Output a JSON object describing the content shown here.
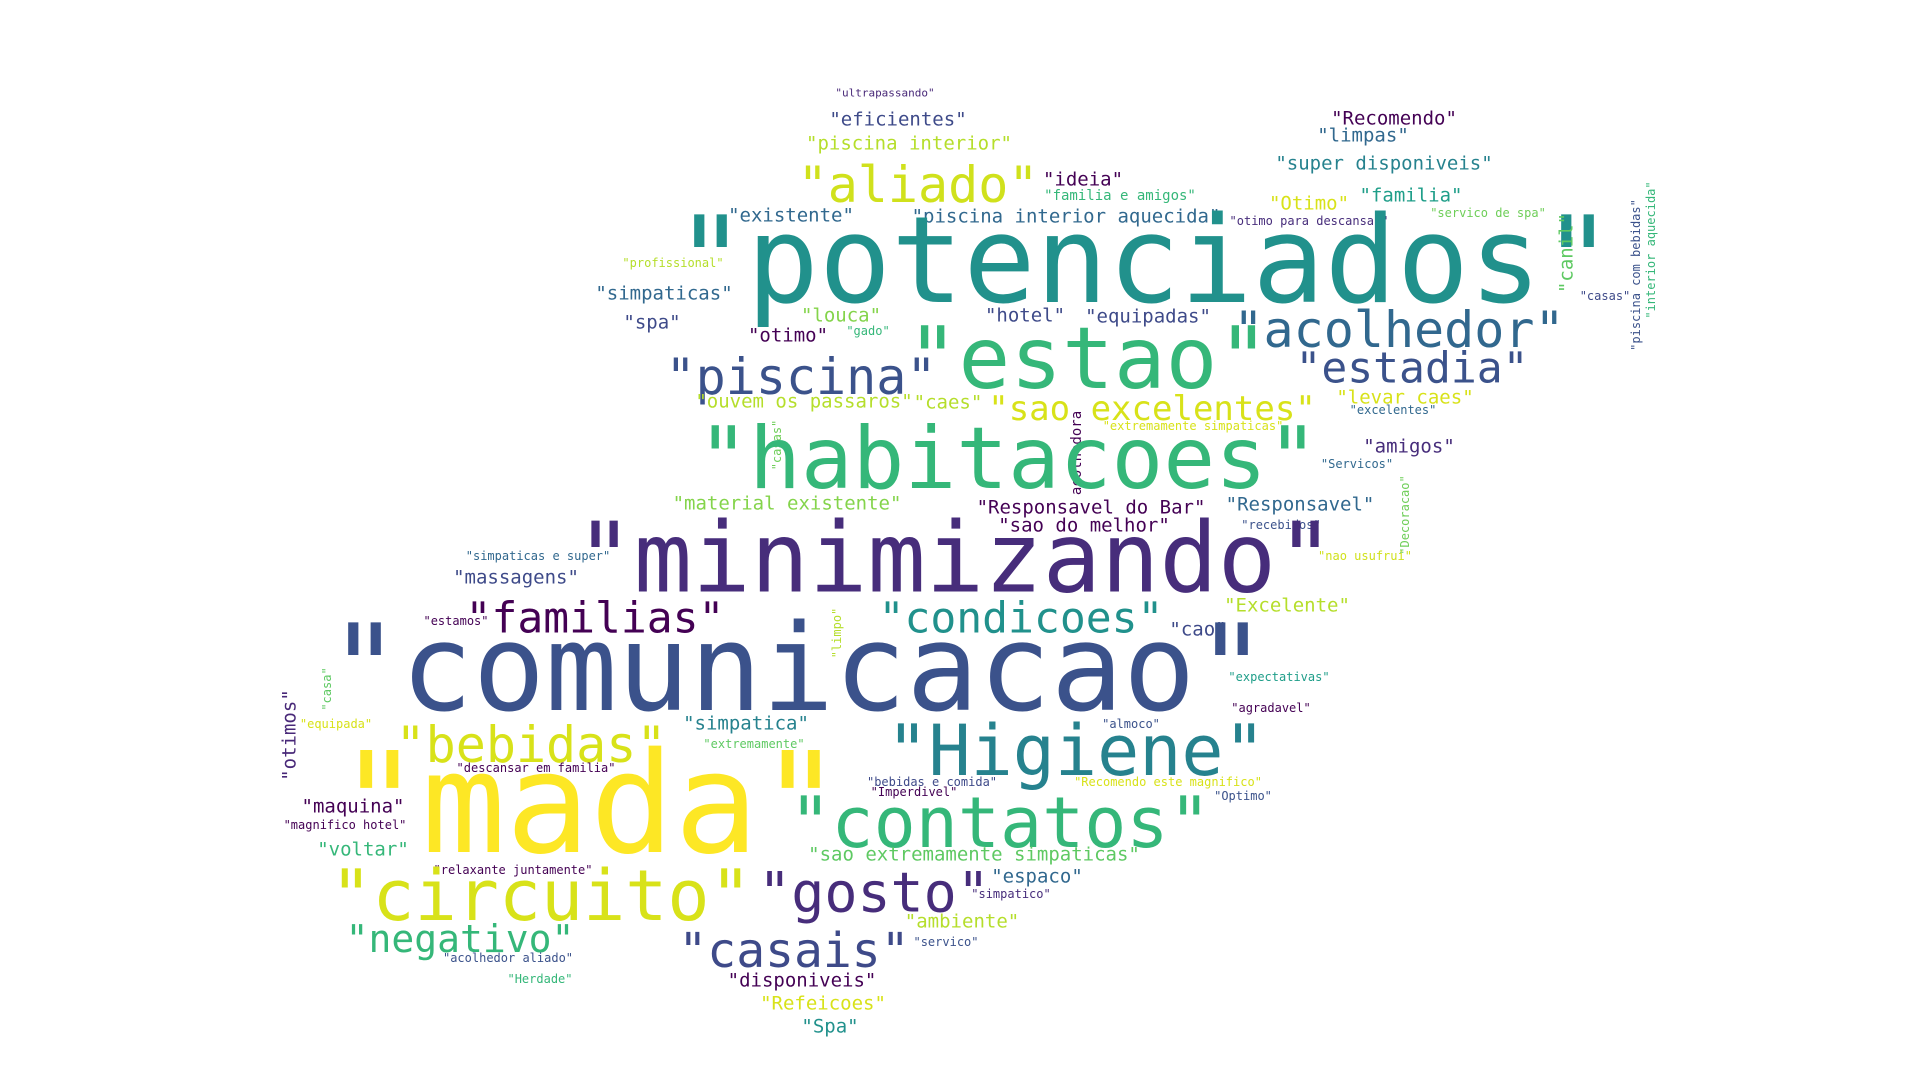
{
  "words": [
    {
      "text": "\"ultrapassando\"",
      "color": "#482878"
    },
    {
      "text": "\"eficientes\"",
      "color": "#3e4a89"
    },
    {
      "text": "\"Recomendo\"",
      "color": "#440154"
    },
    {
      "text": "\"piscina interior\"",
      "color": "#b5de2b"
    },
    {
      "text": "\"limpas\"",
      "color": "#31688e"
    },
    {
      "text": "\"super disponiveis\"",
      "color": "#26828e"
    },
    {
      "text": "\"aliado\"",
      "color": "#d0e11c"
    },
    {
      "text": "\"ideia\"",
      "color": "#440154"
    },
    {
      "text": "\"familia e amigos\"",
      "color": "#35b779"
    },
    {
      "text": "\"Otimo\"",
      "color": "#d8e219"
    },
    {
      "text": "\"familia\"",
      "color": "#1f9e89"
    },
    {
      "text": "\"existente\"",
      "color": "#31688e"
    },
    {
      "text": "\"piscina interior aquecida\"",
      "color": "#31688e"
    },
    {
      "text": "\"otimo para descansar\"",
      "color": "#472d7b"
    },
    {
      "text": "\"servico de spa\"",
      "color": "#6ece58"
    },
    {
      "text": "\"potenciados\"",
      "color": "#21918c"
    },
    {
      "text": "\"profissional\"",
      "color": "#b5de2b"
    },
    {
      "text": "\"canil\"",
      "color": "#5ec962"
    },
    {
      "text": "\"piscina com bebidas\"",
      "color": "#3b528b"
    },
    {
      "text": "\"interior aquecida\"",
      "color": "#35b779"
    },
    {
      "text": "\"simpaticas\"",
      "color": "#31688e"
    },
    {
      "text": "\"louca\"",
      "color": "#84d44b"
    },
    {
      "text": "\"hotel\"",
      "color": "#3e4a89"
    },
    {
      "text": "\"equipadas\"",
      "color": "#3e4a89"
    },
    {
      "text": "\"casas\"",
      "color": "#3e4a89"
    },
    {
      "text": "\"spa\"",
      "color": "#3e4a89"
    },
    {
      "text": "\"gado\"",
      "color": "#35b779"
    },
    {
      "text": "\"otimo\"",
      "color": "#440154"
    },
    {
      "text": "\"estao\"",
      "color": "#35b779"
    },
    {
      "text": "\"acolhedor\"",
      "color": "#31688e"
    },
    {
      "text": "\"piscina\"",
      "color": "#3b528b"
    },
    {
      "text": "\"estadia\"",
      "color": "#3b528b"
    },
    {
      "text": "\"ouvem os passaros\"",
      "color": "#b5de2b"
    },
    {
      "text": "\"caes\"",
      "color": "#b5de2b"
    },
    {
      "text": "\"sao excelentes\"",
      "color": "#d8e219"
    },
    {
      "text": "\"levar caes\"",
      "color": "#d8e219"
    },
    {
      "text": "\"excelentes\"",
      "color": "#31688e"
    },
    {
      "text": "\"extremamente simpaticas\"",
      "color": "#d8e219"
    },
    {
      "text": "\"casas\"",
      "color": "#6ece58"
    },
    {
      "text": "acolhedora",
      "color": "#440154"
    },
    {
      "text": "\"habitacoes\"",
      "color": "#35b779"
    },
    {
      "text": "\"amigos\"",
      "color": "#472d7b"
    },
    {
      "text": "\"Servicos\"",
      "color": "#31688e"
    },
    {
      "text": "\"material existente\"",
      "color": "#84d44b"
    },
    {
      "text": "\"Responsavel do Bar\"",
      "color": "#440154"
    },
    {
      "text": "\"Responsavel\"",
      "color": "#31688e"
    },
    {
      "text": "\"sao do melhor\"",
      "color": "#440154"
    },
    {
      "text": "\"Decoracao\"",
      "color": "#6ece58"
    },
    {
      "text": "\"recebidos\"",
      "color": "#3b528b"
    },
    {
      "text": "\"simpaticas e super\"",
      "color": "#31688e"
    },
    {
      "text": "\"minimizando\"",
      "color": "#472d7b"
    },
    {
      "text": "\"nao usufrui\"",
      "color": "#d0e11c"
    },
    {
      "text": "\"massagens\"",
      "color": "#3e4a89"
    },
    {
      "text": "\"familias\"",
      "color": "#440154"
    },
    {
      "text": "\"condicoes\"",
      "color": "#21918c"
    },
    {
      "text": "\"Excelente\"",
      "color": "#b5de2b"
    },
    {
      "text": "\"estamos\"",
      "color": "#440154"
    },
    {
      "text": "\"limpo\"",
      "color": "#b5de2b"
    },
    {
      "text": "\"cao\"",
      "color": "#3e4a89"
    },
    {
      "text": "\"comunicacao\"",
      "color": "#3b528b"
    },
    {
      "text": "\"expectativas\"",
      "color": "#1f9e89"
    },
    {
      "text": "\"casa\"",
      "color": "#5ec962"
    },
    {
      "text": "\"otimos\"",
      "color": "#482878"
    },
    {
      "text": "\"agradavel\"",
      "color": "#440154"
    },
    {
      "text": "\"equipada\"",
      "color": "#d8e219"
    },
    {
      "text": "\"simpatica\"",
      "color": "#26828e"
    },
    {
      "text": "\"almoco\"",
      "color": "#3b528b"
    },
    {
      "text": "\"bebidas\"",
      "color": "#d8e219"
    },
    {
      "text": "\"Higiene\"",
      "color": "#26828e"
    },
    {
      "text": "\"extremamente\"",
      "color": "#5ec962"
    },
    {
      "text": "\"descansar em familia\"",
      "color": "#440154"
    },
    {
      "text": "\"mada\"",
      "color": "#fde725"
    },
    {
      "text": "\"bebidas e comida\"",
      "color": "#3e4a89"
    },
    {
      "text": "\"Recomendo este magnifico\"",
      "color": "#d8e219"
    },
    {
      "text": "\"Imperdivel\"",
      "color": "#440154"
    },
    {
      "text": "\"Optimo\"",
      "color": "#3b528b"
    },
    {
      "text": "\"maquina\"",
      "color": "#440154"
    },
    {
      "text": "\"contatos\"",
      "color": "#35b779"
    },
    {
      "text": "\"magnifico hotel\"",
      "color": "#440154"
    },
    {
      "text": "\"voltar\"",
      "color": "#35b779"
    },
    {
      "text": "\"sao extremamente simpaticas\"",
      "color": "#5ec962"
    },
    {
      "text": "\"relaxante juntamente\"",
      "color": "#440154"
    },
    {
      "text": "\"espaco\"",
      "color": "#31688e"
    },
    {
      "text": "\"circuito\"",
      "color": "#d8e219"
    },
    {
      "text": "\"gosto\"",
      "color": "#472d7b"
    },
    {
      "text": "\"simpatico\"",
      "color": "#472d7b"
    },
    {
      "text": "\"ambiente\"",
      "color": "#b5de2b"
    },
    {
      "text": "\"negativo\"",
      "color": "#35b779"
    },
    {
      "text": "\"casais\"",
      "color": "#3e4a89"
    },
    {
      "text": "\"servico\"",
      "color": "#3b528b"
    },
    {
      "text": "\"acolhedor aliado\"",
      "color": "#3b528b"
    },
    {
      "text": "\"Herdade\"",
      "color": "#35b779"
    },
    {
      "text": "\"disponiveis\"",
      "color": "#440154"
    },
    {
      "text": "\"Refeicoes\"",
      "color": "#d8e219"
    },
    {
      "text": "\"Spa\"",
      "color": "#21918c"
    }
  ]
}
